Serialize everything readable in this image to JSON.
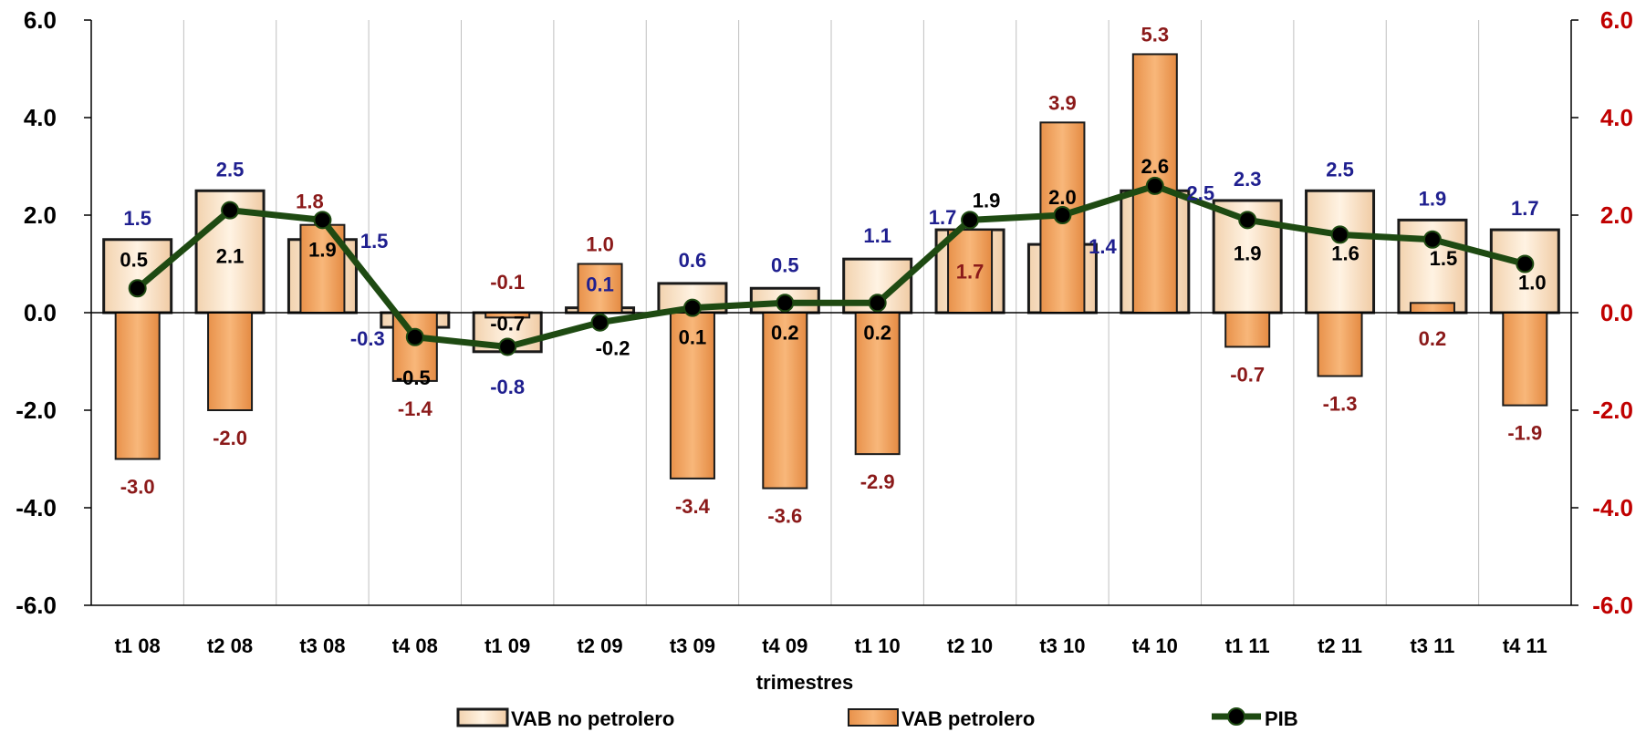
{
  "chart_data": {
    "type": "bar",
    "title": "",
    "xlabel": "trimestres",
    "ylabel": "",
    "ylim": [
      -6,
      6
    ],
    "y2lim": [
      -6,
      6
    ],
    "yticks": [
      "6.0",
      "4.0",
      "2.0",
      "0.0",
      "-2.0",
      "-4.0",
      "-6.0"
    ],
    "grid": "vertical",
    "legend_position": "bottom",
    "categories": [
      "t1 08",
      "t2 08",
      "t3 08",
      "t4 08",
      "t1 09",
      "t2 09",
      "t3 09",
      "t4 09",
      "t1 10",
      "t2 10",
      "t3 10",
      "t4 10",
      "t1 11",
      "t2 11",
      "t3 11",
      "t4 11"
    ],
    "series": [
      {
        "name": "VAB no petrolero",
        "kind": "bar",
        "color": "#FBE0C3",
        "label_color": "#1F1F8F",
        "values": [
          1.5,
          2.5,
          1.5,
          -0.3,
          -0.8,
          0.1,
          0.6,
          0.5,
          1.1,
          1.7,
          1.4,
          2.5,
          2.3,
          2.5,
          1.9,
          1.7
        ],
        "labels": [
          "1.5",
          "2.5",
          "1.5",
          "-0.3",
          "-0.8",
          "0.1",
          "0.6",
          "0.5",
          "1.1",
          "1.7",
          "1.4",
          "2.5",
          "2.3",
          "2.5",
          "1.9",
          "1.7"
        ]
      },
      {
        "name": "VAB petrolero",
        "kind": "bar",
        "color": "#F4A460",
        "label_color": "#8B1A1A",
        "values": [
          -3.0,
          -2.0,
          1.8,
          -1.4,
          -0.1,
          1.0,
          -3.4,
          -3.6,
          -2.9,
          1.7,
          3.9,
          5.3,
          -0.7,
          -1.3,
          0.2,
          -1.9
        ],
        "labels": [
          "-3.0",
          "-2.0",
          "1.8",
          "-1.4",
          "-0.1",
          "1.0",
          "-3.4",
          "-3.6",
          "-2.9",
          "1.7",
          "3.9",
          "5.3",
          "-0.7",
          "-1.3",
          "0.2",
          "-1.9"
        ]
      },
      {
        "name": "PIB",
        "kind": "line",
        "color": "#1E4A12",
        "label_color": "#000000",
        "values": [
          0.5,
          2.1,
          1.9,
          -0.5,
          -0.7,
          -0.2,
          0.1,
          0.2,
          0.2,
          1.9,
          2.0,
          2.6,
          1.9,
          1.6,
          1.5,
          1.0
        ],
        "labels": [
          "0.5",
          "2.1",
          "1.9",
          "-0.5",
          "-0.7",
          "-0.2",
          "0.1",
          "0.2",
          "0.2",
          "1.9",
          "2.0",
          "2.6",
          "1.9",
          "1.6",
          "1.5",
          "1.0"
        ]
      }
    ]
  },
  "colors": {
    "left_axis_labels": "#000000",
    "right_axis_labels": "#C00000",
    "axis_line": "#000000",
    "gridline": "#BFBFBF",
    "bar_border": "#1A1A1A"
  }
}
